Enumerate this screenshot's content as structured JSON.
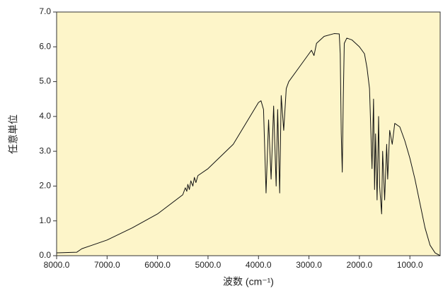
{
  "chart_data": {
    "type": "line",
    "xlabel": "波数 (cm⁻¹)",
    "ylabel": "任意単位",
    "x": [
      8000,
      7600,
      7500,
      7000,
      6500,
      6000,
      5500,
      5450,
      5420,
      5400,
      5370,
      5340,
      5300,
      5270,
      5240,
      5200,
      5000,
      4500,
      4000,
      3950,
      3900,
      3850,
      3800,
      3750,
      3700,
      3650,
      3620,
      3580,
      3550,
      3500,
      3450,
      3400,
      3200,
      3000,
      2950,
      2900,
      2850,
      2700,
      2500,
      2400,
      2380,
      2360,
      2340,
      2320,
      2300,
      2250,
      2150,
      2000,
      1900,
      1850,
      1800,
      1750,
      1720,
      1700,
      1680,
      1650,
      1620,
      1600,
      1560,
      1540,
      1500,
      1460,
      1440,
      1400,
      1350,
      1300,
      1200,
      1100,
      1000,
      900,
      800,
      700,
      600,
      500,
      400
    ],
    "series": [
      {
        "color": "#111111",
        "values": [
          0.08,
          0.1,
          0.2,
          0.45,
          0.8,
          1.2,
          1.75,
          1.95,
          1.85,
          2.05,
          1.9,
          2.15,
          2.0,
          2.25,
          2.1,
          2.3,
          2.5,
          3.2,
          4.4,
          4.45,
          4.2,
          1.8,
          3.9,
          2.2,
          4.3,
          2.0,
          4.2,
          1.8,
          4.6,
          3.6,
          4.8,
          5.0,
          5.4,
          5.8,
          5.9,
          5.75,
          6.1,
          6.3,
          6.38,
          6.37,
          5.8,
          3.5,
          2.4,
          4.5,
          6.1,
          6.25,
          6.2,
          6.0,
          5.8,
          5.4,
          4.8,
          2.5,
          4.5,
          1.9,
          3.5,
          1.6,
          4.0,
          2.0,
          1.2,
          3.0,
          1.6,
          3.2,
          2.2,
          3.6,
          3.2,
          3.8,
          3.7,
          3.3,
          2.8,
          2.2,
          1.5,
          0.8,
          0.3,
          0.08,
          0.0
        ]
      }
    ],
    "xlim": [
      8000,
      400
    ],
    "ylim": [
      0,
      7
    ],
    "xticks": [
      {
        "value": 8000,
        "label": "8000.0"
      },
      {
        "value": 7000,
        "label": "7000.0"
      },
      {
        "value": 6000,
        "label": "6000.0"
      },
      {
        "value": 5000,
        "label": "5000.0"
      },
      {
        "value": 4000,
        "label": "4000.0"
      },
      {
        "value": 3000,
        "label": "3000.0"
      },
      {
        "value": 2000,
        "label": "2000.0"
      },
      {
        "value": 1000,
        "label": "1000.0"
      }
    ],
    "yticks": [
      {
        "value": 0,
        "label": "0.0"
      },
      {
        "value": 1,
        "label": "1.0"
      },
      {
        "value": 2,
        "label": "2.0"
      },
      {
        "value": 3,
        "label": "3.0"
      },
      {
        "value": 4,
        "label": "4.0"
      },
      {
        "value": 5,
        "label": "5.0"
      },
      {
        "value": 6,
        "label": "6.0"
      },
      {
        "value": 7,
        "label": "7.0"
      }
    ],
    "background": "#fdf5c9"
  }
}
